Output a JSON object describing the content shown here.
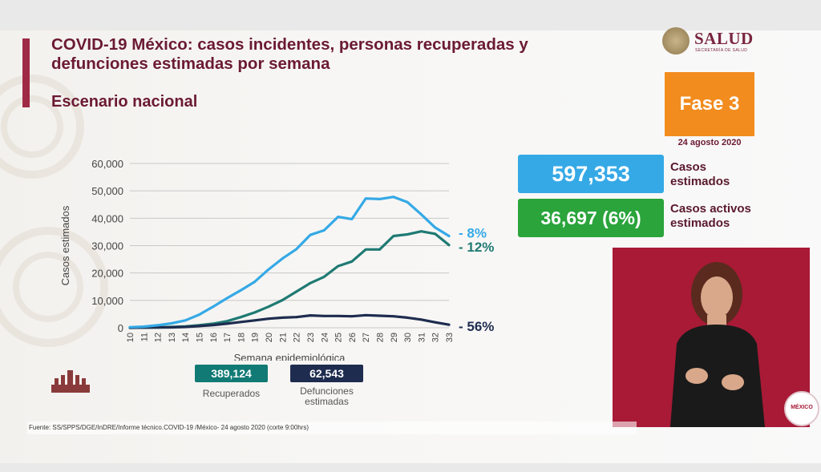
{
  "title": "COVID-19 México: casos incidentes, personas recuperadas y defunciones estimadas por semana",
  "subtitle": "Escenario nacional",
  "logo": {
    "name": "SALUD",
    "sub": "SECRETARÍA DE SALUD"
  },
  "fase": "Fase 3",
  "fecha": "24 agosto 2020",
  "stats": {
    "casos_value": "597,353",
    "casos_label_1": "Casos",
    "casos_label_2": "estimados",
    "activos_value": "36,697 (6%)",
    "activos_label_1": "Casos activos",
    "activos_label_2": "estimados"
  },
  "mini_stats": {
    "recuperados_value": "389,124",
    "recuperados_label": "Recuperados",
    "defunciones_value": "62,543",
    "defunciones_label_1": "Defunciones",
    "defunciones_label_2": "estimadas"
  },
  "badge": "MÉXICO",
  "source": "Fuente: SS/SPPS/DGE/InDRE/Informe técnico.COVID-19 /México- 24 agosto 2020 (corte 9:00hrs)",
  "colors": {
    "casos": "#35a9e6",
    "recuperados": "#1f7a73",
    "defunciones": "#1e2c4f",
    "title": "#6b1a33"
  },
  "chart_data": {
    "type": "line",
    "xlabel": "Semana epidemiológica",
    "ylabel": "Casos estimados",
    "ylim": [
      0,
      60000
    ],
    "yticks": [
      0,
      10000,
      20000,
      30000,
      40000,
      50000,
      60000
    ],
    "ytick_labels": [
      "0",
      "10,000",
      "20,000",
      "30,000",
      "40,000",
      "50,000",
      "60,000"
    ],
    "x": [
      10,
      11,
      12,
      13,
      14,
      15,
      16,
      17,
      18,
      19,
      20,
      21,
      22,
      23,
      24,
      25,
      26,
      27,
      28,
      29,
      30,
      31,
      32,
      33
    ],
    "grid": true,
    "series": [
      {
        "key": "casos",
        "end_label": "- 8%",
        "values": [
          200,
          400,
          900,
          1600,
          2700,
          4800,
          7700,
          10800,
          13700,
          16800,
          21300,
          25300,
          28700,
          33900,
          35600,
          40500,
          39700,
          47200,
          47000,
          47800,
          45900,
          41400,
          36600,
          33500
        ]
      },
      {
        "key": "recuperados",
        "end_label": "- 12%",
        "values": [
          0,
          50,
          150,
          300,
          500,
          900,
          1500,
          2400,
          3900,
          5600,
          7700,
          10100,
          13200,
          16300,
          18600,
          22500,
          24200,
          28600,
          28600,
          33500,
          34100,
          35200,
          34300,
          30200
        ]
      },
      {
        "key": "defunciones",
        "end_label": "- 56%",
        "values": [
          0,
          50,
          100,
          150,
          300,
          600,
          1000,
          1500,
          2100,
          2700,
          3300,
          3700,
          3900,
          4500,
          4300,
          4300,
          4200,
          4600,
          4400,
          4200,
          3700,
          3000,
          2000,
          1100
        ]
      }
    ]
  }
}
